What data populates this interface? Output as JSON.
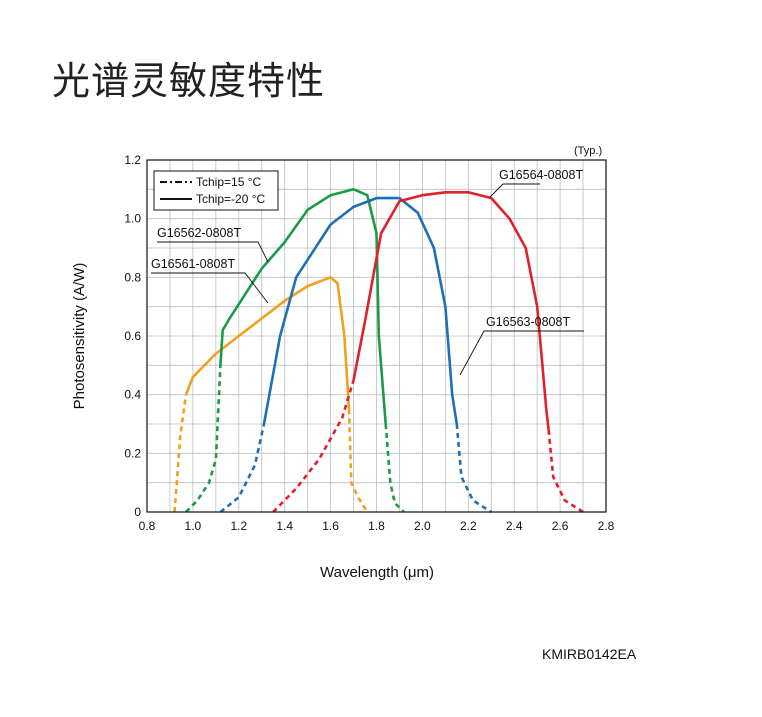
{
  "page": {
    "title": "光谱灵敏度特性",
    "figure_code": "KMIRB0142EA"
  },
  "chart_data": {
    "type": "line",
    "title": "",
    "typ_label": "(Typ.)",
    "xlabel": "Wavelength (μm)",
    "ylabel": "Photosensitivity (A/W)",
    "xlim": [
      0.8,
      2.8
    ],
    "ylim": [
      0,
      1.2
    ],
    "x_ticks": [
      "0.8",
      "1.0",
      "1.2",
      "1.4",
      "1.6",
      "1.8",
      "2.0",
      "2.2",
      "2.4",
      "2.6",
      "2.8"
    ],
    "y_ticks": [
      "0",
      "0.2",
      "0.4",
      "0.6",
      "0.8",
      "1.0",
      "1.2"
    ],
    "grid": true,
    "legend": {
      "placement": "top-left",
      "entries": [
        {
          "label": "Tchip=15 °C",
          "style": "dash-dot"
        },
        {
          "label": "Tchip=-20 °C",
          "style": "solid"
        }
      ]
    },
    "series": [
      {
        "name": "G16561-0808T",
        "color": "#f0a01e",
        "dashdot": [
          [
            0.92,
            0.0
          ],
          [
            0.93,
            0.1
          ],
          [
            0.945,
            0.26
          ],
          [
            0.97,
            0.4
          ]
        ],
        "solid": [
          [
            0.97,
            0.4
          ],
          [
            1.0,
            0.46
          ],
          [
            1.1,
            0.54
          ],
          [
            1.2,
            0.6
          ],
          [
            1.3,
            0.66
          ],
          [
            1.4,
            0.72
          ],
          [
            1.5,
            0.77
          ],
          [
            1.6,
            0.8
          ],
          [
            1.63,
            0.78
          ],
          [
            1.66,
            0.6
          ],
          [
            1.68,
            0.35
          ]
        ],
        "tail": [
          [
            1.68,
            0.35
          ],
          [
            1.69,
            0.1
          ],
          [
            1.72,
            0.05
          ],
          [
            1.76,
            0.0
          ]
        ]
      },
      {
        "name": "G16562-0808T",
        "color": "#1a9b48",
        "dashdot": [
          [
            0.97,
            0.0
          ],
          [
            1.02,
            0.04
          ],
          [
            1.07,
            0.1
          ],
          [
            1.1,
            0.18
          ],
          [
            1.12,
            0.5
          ]
        ],
        "solid": [
          [
            1.12,
            0.5
          ],
          [
            1.13,
            0.62
          ],
          [
            1.16,
            0.66
          ],
          [
            1.3,
            0.83
          ],
          [
            1.4,
            0.92
          ],
          [
            1.5,
            1.03
          ],
          [
            1.6,
            1.08
          ],
          [
            1.7,
            1.1
          ],
          [
            1.76,
            1.08
          ],
          [
            1.8,
            0.95
          ],
          [
            1.81,
            0.6
          ],
          [
            1.84,
            0.3
          ]
        ],
        "tail": [
          [
            1.84,
            0.3
          ],
          [
            1.86,
            0.1
          ],
          [
            1.88,
            0.03
          ],
          [
            1.92,
            0.0
          ]
        ]
      },
      {
        "name": "G16563-0808T",
        "color": "#1e6fb5",
        "dashdot": [
          [
            1.12,
            0.0
          ],
          [
            1.2,
            0.05
          ],
          [
            1.27,
            0.16
          ],
          [
            1.31,
            0.3
          ]
        ],
        "solid": [
          [
            1.31,
            0.3
          ],
          [
            1.38,
            0.6
          ],
          [
            1.45,
            0.8
          ],
          [
            1.6,
            0.98
          ],
          [
            1.7,
            1.04
          ],
          [
            1.8,
            1.07
          ],
          [
            1.9,
            1.07
          ],
          [
            1.98,
            1.02
          ],
          [
            2.05,
            0.9
          ],
          [
            2.1,
            0.7
          ],
          [
            2.13,
            0.4
          ],
          [
            2.15,
            0.3
          ]
        ],
        "tail": [
          [
            2.15,
            0.3
          ],
          [
            2.17,
            0.12
          ],
          [
            2.22,
            0.04
          ],
          [
            2.3,
            0.0
          ]
        ]
      },
      {
        "name": "G16564-0808T",
        "color": "#e0212b",
        "dashdot": [
          [
            1.35,
            0.0
          ],
          [
            1.45,
            0.08
          ],
          [
            1.55,
            0.18
          ],
          [
            1.65,
            0.32
          ],
          [
            1.7,
            0.45
          ]
        ],
        "solid": [
          [
            1.7,
            0.45
          ],
          [
            1.75,
            0.65
          ],
          [
            1.82,
            0.95
          ],
          [
            1.9,
            1.06
          ],
          [
            2.0,
            1.08
          ],
          [
            2.1,
            1.09
          ],
          [
            2.2,
            1.09
          ],
          [
            2.3,
            1.07
          ],
          [
            2.38,
            1.0
          ],
          [
            2.45,
            0.9
          ],
          [
            2.5,
            0.7
          ],
          [
            2.54,
            0.35
          ],
          [
            2.55,
            0.28
          ]
        ],
        "tail": [
          [
            2.55,
            0.28
          ],
          [
            2.57,
            0.12
          ],
          [
            2.62,
            0.04
          ],
          [
            2.7,
            0.0
          ]
        ]
      }
    ],
    "annotations": [
      {
        "series": "G16564-0808T",
        "text": "G16564-0808T"
      },
      {
        "series": "G16562-0808T",
        "text": "G16562-0808T"
      },
      {
        "series": "G16561-0808T",
        "text": "G16561-0808T"
      },
      {
        "series": "G16563-0808T",
        "text": "G16563-0808T"
      }
    ]
  }
}
